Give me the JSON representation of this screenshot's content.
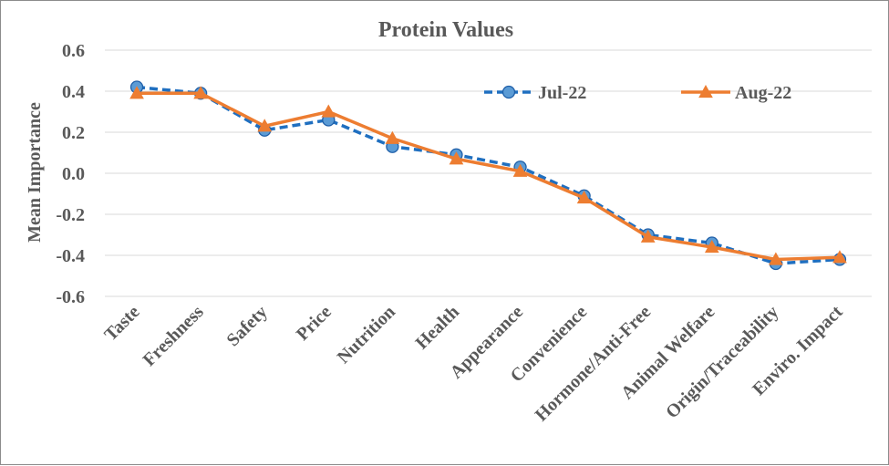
{
  "chart_data": {
    "type": "line",
    "title": "Protein Values",
    "xlabel": "",
    "ylabel": "Mean Importance",
    "ylim": [
      -0.6,
      0.6
    ],
    "y_ticks": [
      "0.6",
      "0.4",
      "0.2",
      "0.0",
      "-0.2",
      "-0.4",
      "-0.6"
    ],
    "y_tick_values": [
      0.6,
      0.4,
      0.2,
      0.0,
      -0.2,
      -0.4,
      -0.6
    ],
    "grid": true,
    "legend_position": "top-right",
    "categories": [
      "Taste",
      "Freshness",
      "Safety",
      "Price",
      "Nutrition",
      "Health",
      "Appearance",
      "Convenience",
      "Hormone/Anti-Free",
      "Animal Welfare",
      "Origin/Traceability",
      "Enviro. Impact"
    ],
    "series": [
      {
        "name": "Jul-22",
        "color": "#1f6fc0",
        "marker": "circle",
        "line_style": "dashed",
        "values": [
          0.42,
          0.39,
          0.21,
          0.26,
          0.13,
          0.09,
          0.03,
          -0.11,
          -0.3,
          -0.34,
          -0.44,
          -0.42
        ]
      },
      {
        "name": "Aug-22",
        "color": "#ed7d31",
        "marker": "triangle",
        "line_style": "solid",
        "values": [
          0.39,
          0.39,
          0.23,
          0.3,
          0.17,
          0.07,
          0.01,
          -0.12,
          -0.31,
          -0.36,
          -0.42,
          -0.41
        ]
      }
    ]
  }
}
